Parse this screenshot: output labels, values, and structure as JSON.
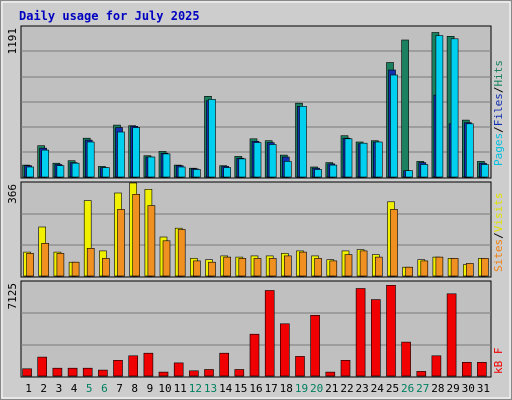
{
  "chart_data": [
    {
      "type": "bar",
      "panel": "hits-files-pages",
      "title": "Daily usage for July 2025",
      "x": [
        1,
        2,
        3,
        4,
        5,
        6,
        7,
        8,
        9,
        10,
        11,
        12,
        13,
        14,
        15,
        16,
        17,
        18,
        19,
        20,
        21,
        22,
        23,
        24,
        25,
        26,
        27,
        28,
        29,
        30,
        31
      ],
      "ymax_label": "1191",
      "ylim": [
        0,
        1191
      ],
      "grid": true,
      "series": [
        {
          "name": "Hits",
          "color": "#1a8060",
          "values": [
            95,
            250,
            110,
            130,
            310,
            85,
            415,
            410,
            170,
            205,
            95,
            70,
            645,
            90,
            165,
            305,
            290,
            175,
            590,
            80,
            115,
            330,
            280,
            290,
            915,
            1095,
            125,
            1155,
            1125,
            455,
            125
          ]
        },
        {
          "name": "Files",
          "color": "#1030b0",
          "values": [
            90,
            230,
            100,
            115,
            295,
            75,
            395,
            405,
            160,
            190,
            90,
            65,
            610,
            85,
            150,
            285,
            275,
            160,
            565,
            70,
            105,
            310,
            265,
            280,
            855,
            50,
            115,
            655,
            425,
            435,
            110
          ]
        },
        {
          "name": "Pages",
          "color": "#00d0f0",
          "values": [
            80,
            215,
            90,
            110,
            280,
            75,
            360,
            395,
            160,
            185,
            80,
            60,
            620,
            75,
            145,
            275,
            260,
            125,
            565,
            60,
            95,
            305,
            270,
            280,
            815,
            50,
            100,
            1130,
            1105,
            425,
            100
          ]
        }
      ]
    },
    {
      "type": "bar",
      "panel": "visits-sites",
      "x": [
        1,
        2,
        3,
        4,
        5,
        6,
        7,
        8,
        9,
        10,
        11,
        12,
        13,
        14,
        15,
        16,
        17,
        18,
        19,
        20,
        21,
        22,
        23,
        24,
        25,
        26,
        27,
        28,
        29,
        30,
        31
      ],
      "ymax_label": "366",
      "ylim": [
        0,
        366
      ],
      "series": [
        {
          "name": "Visits",
          "color": "#f0f000",
          "values": [
            95,
            195,
            95,
            55,
            300,
            100,
            330,
            370,
            345,
            155,
            190,
            70,
            65,
            80,
            75,
            80,
            80,
            90,
            100,
            80,
            65,
            100,
            105,
            85,
            295,
            35,
            65,
            75,
            70,
            45,
            70
          ]
        },
        {
          "name": "Sites",
          "color": "#f09020",
          "values": [
            90,
            130,
            90,
            55,
            110,
            70,
            265,
            325,
            280,
            140,
            185,
            60,
            55,
            75,
            70,
            70,
            70,
            80,
            95,
            70,
            60,
            85,
            100,
            75,
            265,
            35,
            60,
            75,
            70,
            50,
            70
          ]
        }
      ]
    },
    {
      "type": "bar",
      "panel": "kbytes",
      "x": [
        1,
        2,
        3,
        4,
        5,
        6,
        7,
        8,
        9,
        10,
        11,
        12,
        13,
        14,
        15,
        16,
        17,
        18,
        19,
        20,
        21,
        22,
        23,
        24,
        25,
        26,
        27,
        28,
        29,
        30,
        31
      ],
      "ymax_label": "7125",
      "ylim": [
        0,
        7125
      ],
      "series": [
        {
          "name": "kB F",
          "color": "#f00000",
          "values": [
            550,
            1450,
            600,
            600,
            600,
            450,
            1200,
            1550,
            1750,
            300,
            1000,
            400,
            500,
            1750,
            500,
            3200,
            6550,
            4000,
            1500,
            4650,
            300,
            1200,
            6700,
            5850,
            6950,
            2600,
            350,
            1550,
            6300,
            1050,
            1050
          ]
        }
      ]
    }
  ],
  "labels": {
    "title": "Daily usage for July 2025",
    "pages": "Pages",
    "files": "Files",
    "hits": "Hits",
    "sites": "Sites",
    "visits": "Visits",
    "kbytes": "kB F",
    "slash": "/"
  },
  "weekend_days": [
    5,
    6,
    12,
    13,
    19,
    20,
    26,
    27
  ],
  "colors": {
    "title": "#0000c0",
    "day_weekday": "#000000",
    "day_weekend": "#008060",
    "panel_bg": "#c0c0c0",
    "frame": "#cccccc"
  }
}
